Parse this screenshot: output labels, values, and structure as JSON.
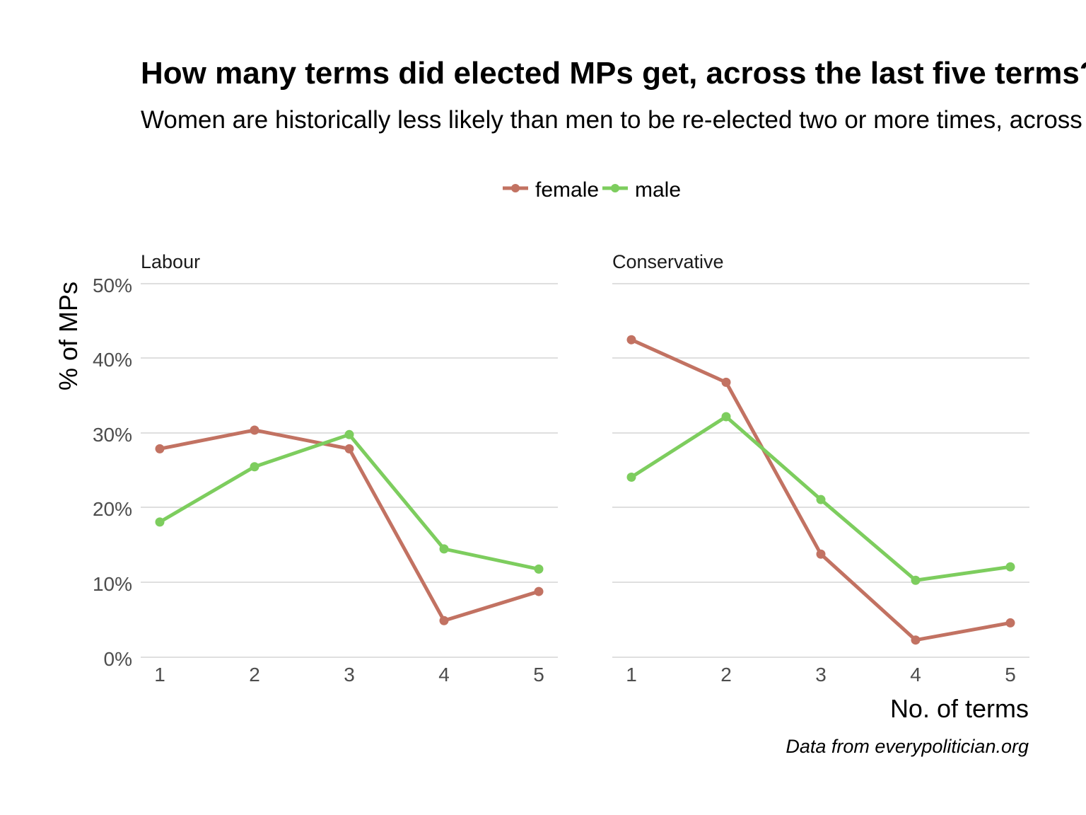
{
  "chart_data": {
    "type": "line",
    "title": "How many terms did elected MPs get, across the last five terms?",
    "subtitle": "Women are historically less likely than men to be re-elected two or more times, across",
    "xlabel": "No. of terms",
    "ylabel": "% of MPs",
    "caption": "Data from everypolitician.org",
    "x": [
      1,
      2,
      3,
      4,
      5
    ],
    "x_tick_labels": [
      "1",
      "2",
      "3",
      "4",
      "5"
    ],
    "ylim": [
      0,
      50
    ],
    "y_ticks": [
      0,
      10,
      20,
      30,
      40,
      50
    ],
    "y_tick_labels": [
      "0%",
      "10%",
      "20%",
      "30%",
      "40%",
      "50%"
    ],
    "grid": true,
    "legend": {
      "position": "top",
      "entries": [
        {
          "name": "female",
          "color": "#c27262"
        },
        {
          "name": "male",
          "color": "#7dcd5e"
        }
      ]
    },
    "panels": [
      {
        "label": "Labour",
        "series": [
          {
            "name": "female",
            "values": [
              27.9,
              30.4,
              27.9,
              4.9,
              8.8
            ]
          },
          {
            "name": "male",
            "values": [
              18.1,
              25.5,
              29.8,
              14.5,
              11.8
            ]
          }
        ]
      },
      {
        "label": "Conservative",
        "series": [
          {
            "name": "female",
            "values": [
              42.5,
              36.8,
              13.8,
              2.3,
              4.6
            ]
          },
          {
            "name": "male",
            "values": [
              24.1,
              32.2,
              21.1,
              10.3,
              12.1
            ]
          }
        ]
      }
    ]
  }
}
